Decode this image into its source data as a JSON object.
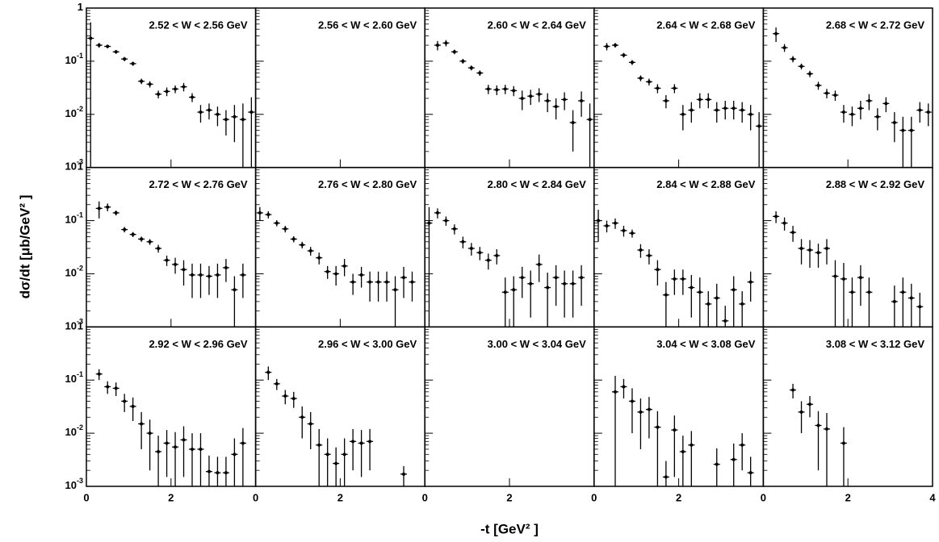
{
  "chart_data": {
    "type": "scatter",
    "x_label": "-t [GeV² ]",
    "y_label": "dσ/dt [μb/GeV² ]",
    "xlim": [
      0,
      4
    ],
    "xticks": [
      0,
      2,
      4
    ],
    "ylim": [
      0.001,
      1
    ],
    "yscale": "log",
    "yticks": [
      {
        "value": 0.001,
        "label": "10",
        "exponent": "-3"
      },
      {
        "value": 0.01,
        "label": "10",
        "exponent": "-2"
      },
      {
        "value": 0.1,
        "label": "10",
        "exponent": "-1"
      },
      1
    ],
    "color": "#000000",
    "panels": [
      {
        "title": "2.52 < W < 2.56 GeV",
        "x": [
          0.1,
          0.3,
          0.5,
          0.7,
          0.9,
          1.1,
          1.3,
          1.5,
          1.7,
          1.9,
          2.1,
          2.3,
          2.5,
          2.7,
          2.9,
          3.1,
          3.3,
          3.5,
          3.7,
          3.9
        ],
        "values": [
          0.27,
          0.2,
          0.19,
          0.15,
          0.11,
          0.09,
          0.042,
          0.037,
          0.024,
          0.027,
          0.03,
          0.033,
          0.021,
          0.011,
          0.012,
          0.01,
          0.008,
          0.009,
          0.008,
          0.011
        ],
        "errors": [
          0.27,
          0.02,
          0.015,
          0.012,
          0.01,
          0.008,
          0.005,
          0.005,
          0.004,
          0.005,
          0.005,
          0.006,
          0.004,
          0.004,
          0.004,
          0.004,
          0.004,
          0.006,
          0.008,
          0.01
        ]
      },
      {
        "title": "2.56 < W < 2.60 GeV",
        "x": [],
        "values": [],
        "errors": []
      },
      {
        "title": "2.60 < W < 2.64 GeV",
        "x": [
          0.3,
          0.5,
          0.7,
          0.9,
          1.1,
          1.3,
          1.5,
          1.7,
          1.9,
          2.1,
          2.3,
          2.5,
          2.7,
          2.9,
          3.1,
          3.3,
          3.5,
          3.7,
          3.9
        ],
        "values": [
          0.2,
          0.22,
          0.15,
          0.1,
          0.075,
          0.06,
          0.03,
          0.029,
          0.03,
          0.028,
          0.02,
          0.022,
          0.024,
          0.018,
          0.014,
          0.019,
          0.007,
          0.018,
          0.008
        ],
        "errors": [
          0.04,
          0.03,
          0.015,
          0.01,
          0.008,
          0.007,
          0.006,
          0.006,
          0.006,
          0.006,
          0.008,
          0.007,
          0.007,
          0.007,
          0.006,
          0.007,
          0.005,
          0.009,
          0.008
        ]
      },
      {
        "title": "2.64 < W < 2.68 GeV",
        "x": [
          0.3,
          0.5,
          0.7,
          0.9,
          1.1,
          1.3,
          1.5,
          1.7,
          1.9,
          2.1,
          2.3,
          2.5,
          2.7,
          2.9,
          3.1,
          3.3,
          3.5,
          3.7,
          3.9
        ],
        "values": [
          0.19,
          0.2,
          0.13,
          0.095,
          0.048,
          0.041,
          0.031,
          0.018,
          0.031,
          0.01,
          0.012,
          0.019,
          0.019,
          0.012,
          0.013,
          0.013,
          0.012,
          0.01,
          0.006
        ],
        "errors": [
          0.03,
          0.02,
          0.013,
          0.01,
          0.006,
          0.006,
          0.006,
          0.005,
          0.006,
          0.005,
          0.005,
          0.006,
          0.006,
          0.005,
          0.005,
          0.005,
          0.005,
          0.005,
          0.005
        ]
      },
      {
        "title": "2.68 < W < 2.72 GeV",
        "x": [
          0.3,
          0.5,
          0.7,
          0.9,
          1.1,
          1.3,
          1.5,
          1.7,
          1.9,
          2.1,
          2.3,
          2.5,
          2.7,
          2.9,
          3.1,
          3.3,
          3.5,
          3.7,
          3.9
        ],
        "values": [
          0.33,
          0.18,
          0.11,
          0.08,
          0.058,
          0.035,
          0.025,
          0.023,
          0.011,
          0.01,
          0.013,
          0.018,
          0.009,
          0.016,
          0.007,
          0.005,
          0.005,
          0.012,
          0.011
        ],
        "errors": [
          0.1,
          0.03,
          0.015,
          0.01,
          0.008,
          0.006,
          0.005,
          0.005,
          0.004,
          0.004,
          0.005,
          0.006,
          0.004,
          0.005,
          0.004,
          0.004,
          0.004,
          0.005,
          0.005
        ]
      },
      {
        "title": "2.72 < W < 2.76 GeV",
        "x": [
          0.3,
          0.5,
          0.7,
          0.9,
          1.1,
          1.3,
          1.5,
          1.7,
          1.9,
          2.1,
          2.3,
          2.5,
          2.7,
          2.9,
          3.1,
          3.3,
          3.5,
          3.7
        ],
        "values": [
          0.17,
          0.18,
          0.14,
          0.068,
          0.055,
          0.045,
          0.04,
          0.03,
          0.018,
          0.015,
          0.012,
          0.0095,
          0.0095,
          0.009,
          0.0095,
          0.013,
          0.005,
          0.0095
        ],
        "errors": [
          0.06,
          0.03,
          0.015,
          0.008,
          0.006,
          0.005,
          0.005,
          0.005,
          0.004,
          0.005,
          0.006,
          0.006,
          0.006,
          0.005,
          0.006,
          0.006,
          0.004,
          0.006
        ]
      },
      {
        "title": "2.76 < W < 2.80 GeV",
        "x": [
          0.1,
          0.3,
          0.5,
          0.7,
          0.9,
          1.1,
          1.3,
          1.5,
          1.7,
          1.9,
          2.1,
          2.3,
          2.5,
          2.7,
          2.9,
          3.1,
          3.3,
          3.5,
          3.7
        ],
        "values": [
          0.14,
          0.13,
          0.09,
          0.07,
          0.045,
          0.035,
          0.027,
          0.02,
          0.011,
          0.01,
          0.014,
          0.007,
          0.0095,
          0.007,
          0.007,
          0.007,
          0.005,
          0.0085,
          0.007
        ],
        "errors": [
          0.04,
          0.02,
          0.012,
          0.01,
          0.006,
          0.005,
          0.005,
          0.005,
          0.003,
          0.004,
          0.005,
          0.003,
          0.004,
          0.004,
          0.004,
          0.004,
          0.004,
          0.005,
          0.004
        ]
      },
      {
        "title": "2.80 < W < 2.84 GeV",
        "x": [
          0.1,
          0.3,
          0.5,
          0.7,
          0.9,
          1.1,
          1.3,
          1.5,
          1.7,
          1.9,
          2.1,
          2.3,
          2.5,
          2.7,
          2.9,
          3.1,
          3.3,
          3.5,
          3.7
        ],
        "values": [
          0.09,
          0.14,
          0.1,
          0.07,
          0.04,
          0.03,
          0.025,
          0.018,
          0.022,
          0.0045,
          0.005,
          0.0085,
          0.0065,
          0.015,
          0.0055,
          0.0085,
          0.0065,
          0.0065,
          0.0085
        ],
        "errors": [
          0.09,
          0.03,
          0.02,
          0.015,
          0.01,
          0.008,
          0.007,
          0.006,
          0.007,
          0.004,
          0.004,
          0.005,
          0.005,
          0.008,
          0.005,
          0.006,
          0.005,
          0.005,
          0.006
        ]
      },
      {
        "title": "2.84 < W < 2.88 GeV",
        "x": [
          0.1,
          0.3,
          0.5,
          0.7,
          0.9,
          1.1,
          1.3,
          1.5,
          1.7,
          1.9,
          2.1,
          2.3,
          2.5,
          2.7,
          2.9,
          3.1,
          3.3,
          3.5,
          3.7
        ],
        "values": [
          0.1,
          0.08,
          0.09,
          0.065,
          0.058,
          0.028,
          0.022,
          0.012,
          0.004,
          0.008,
          0.008,
          0.0055,
          0.0045,
          0.0027,
          0.0035,
          0.0013,
          0.005,
          0.0027,
          0.007
        ],
        "errors": [
          0.06,
          0.02,
          0.02,
          0.015,
          0.01,
          0.008,
          0.007,
          0.006,
          0.003,
          0.004,
          0.004,
          0.004,
          0.004,
          0.002,
          0.003,
          0.0012,
          0.004,
          0.002,
          0.004
        ]
      },
      {
        "title": "2.88 < W < 2.92 GeV",
        "x": [
          0.3,
          0.5,
          0.7,
          0.9,
          1.1,
          1.3,
          1.5,
          1.7,
          1.9,
          2.1,
          2.3,
          2.5,
          3.1,
          3.3,
          3.5,
          3.7
        ],
        "values": [
          0.12,
          0.09,
          0.06,
          0.03,
          0.028,
          0.025,
          0.03,
          0.009,
          0.008,
          0.0045,
          0.0085,
          0.0045,
          0.003,
          0.0045,
          0.0035,
          0.0024
        ],
        "errors": [
          0.03,
          0.025,
          0.02,
          0.015,
          0.015,
          0.012,
          0.015,
          0.009,
          0.008,
          0.004,
          0.006,
          0.004,
          0.003,
          0.004,
          0.003,
          0.002
        ]
      },
      {
        "title": "2.92 < W < 2.96 GeV",
        "x": [
          0.3,
          0.5,
          0.7,
          0.9,
          1.1,
          1.3,
          1.5,
          1.7,
          1.9,
          2.1,
          2.3,
          2.5,
          2.7,
          2.9,
          3.1,
          3.3,
          3.5,
          3.7
        ],
        "values": [
          0.13,
          0.075,
          0.07,
          0.04,
          0.032,
          0.015,
          0.01,
          0.0045,
          0.0065,
          0.0055,
          0.0075,
          0.005,
          0.005,
          0.0019,
          0.0018,
          0.0018,
          0.004,
          0.0065
        ],
        "errors": [
          0.03,
          0.02,
          0.02,
          0.015,
          0.015,
          0.01,
          0.008,
          0.0045,
          0.005,
          0.005,
          0.006,
          0.005,
          0.005,
          0.0019,
          0.0018,
          0.0018,
          0.004,
          0.006
        ]
      },
      {
        "title": "2.96 < W < 3.00 GeV",
        "x": [
          0.3,
          0.5,
          0.7,
          0.9,
          1.1,
          1.3,
          1.5,
          1.7,
          1.9,
          2.1,
          2.3,
          2.5,
          2.7,
          3.5
        ],
        "values": [
          0.14,
          0.085,
          0.05,
          0.045,
          0.02,
          0.015,
          0.006,
          0.004,
          0.0027,
          0.004,
          0.007,
          0.0065,
          0.007,
          0.0017
        ],
        "errors": [
          0.04,
          0.02,
          0.015,
          0.015,
          0.012,
          0.01,
          0.006,
          0.004,
          0.0027,
          0.004,
          0.005,
          0.005,
          0.005,
          0.0007
        ]
      },
      {
        "title": "3.00 < W < 3.04 GeV",
        "x": [],
        "values": [],
        "errors": []
      },
      {
        "title": "3.04 < W < 3.08 GeV",
        "x": [
          0.5,
          0.7,
          0.9,
          1.1,
          1.3,
          1.5,
          1.7,
          1.9,
          2.1,
          2.3,
          2.9,
          3.3,
          3.5,
          3.7
        ],
        "values": [
          0.06,
          0.075,
          0.04,
          0.025,
          0.028,
          0.013,
          0.0015,
          0.0115,
          0.0045,
          0.006,
          0.0026,
          0.0032,
          0.006,
          0.0018
        ],
        "errors": [
          0.06,
          0.03,
          0.03,
          0.02,
          0.02,
          0.013,
          0.0015,
          0.01,
          0.0045,
          0.005,
          0.0026,
          0.0032,
          0.004,
          0.0018
        ]
      },
      {
        "title": "3.08 < W < 3.12 GeV",
        "x": [
          0.7,
          0.9,
          1.1,
          1.3,
          1.5,
          1.9
        ],
        "values": [
          0.065,
          0.025,
          0.035,
          0.014,
          0.012,
          0.0065
        ],
        "errors": [
          0.02,
          0.015,
          0.015,
          0.012,
          0.012,
          0.0065
        ]
      }
    ]
  }
}
